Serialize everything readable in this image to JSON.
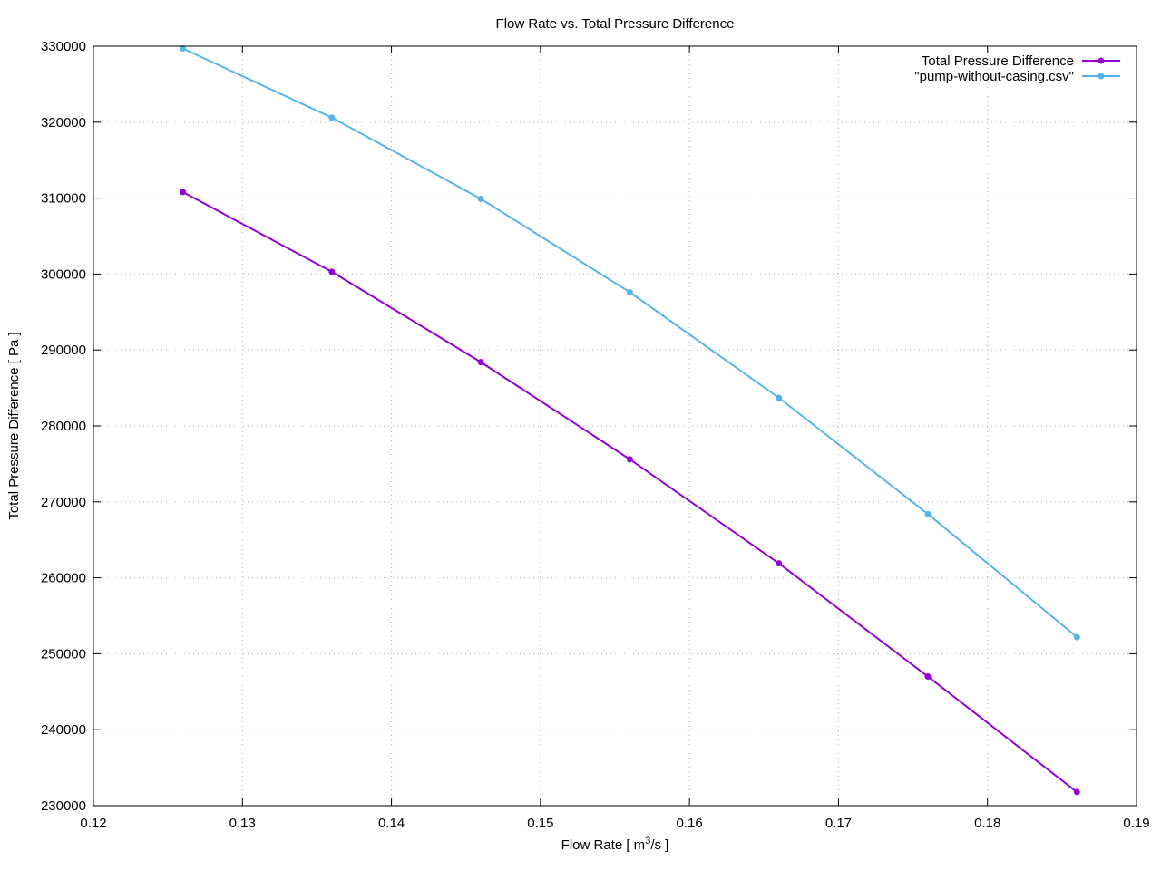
{
  "chart_data": {
    "type": "line",
    "title": "Flow Rate vs. Total Pressure Difference",
    "xlabel": "Flow Rate [ m",
    "xlabel_sup": "3",
    "xlabel_tail": "/s ]",
    "ylabel": "Total Pressure Difference [ Pa ]",
    "xlim": [
      0.12,
      0.19
    ],
    "ylim": [
      230000,
      330000
    ],
    "x_ticks": [
      0.12,
      0.13,
      0.14,
      0.15,
      0.16,
      0.17,
      0.18,
      0.19
    ],
    "x_tick_labels": [
      "0.12",
      "0.13",
      "0.14",
      "0.15",
      "0.16",
      "0.17",
      "0.18",
      "0.19"
    ],
    "y_ticks": [
      230000,
      240000,
      250000,
      260000,
      270000,
      280000,
      290000,
      300000,
      310000,
      320000,
      330000
    ],
    "y_tick_labels": [
      "230000",
      "240000",
      "250000",
      "260000",
      "270000",
      "280000",
      "290000",
      "300000",
      "310000",
      "320000",
      "330000"
    ],
    "grid": true,
    "legend_position": "top-right",
    "series": [
      {
        "name": "Total Pressure Difference",
        "color": "#9400d3",
        "x": [
          0.126,
          0.136,
          0.146,
          0.156,
          0.166,
          0.176,
          0.186
        ],
        "y": [
          310800,
          300300,
          288400,
          275600,
          261900,
          247000,
          231800
        ]
      },
      {
        "name": "\"pump-without-casing.csv\"",
        "color": "#56b4e9",
        "x": [
          0.126,
          0.136,
          0.146,
          0.156,
          0.166,
          0.176,
          0.186
        ],
        "y": [
          329700,
          320600,
          309900,
          297600,
          283700,
          268400,
          252200
        ]
      }
    ]
  }
}
